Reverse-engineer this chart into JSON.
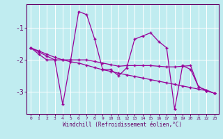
{
  "xlabel": "Windchill (Refroidissement éolien,°C)",
  "bg_color": "#c0ecf0",
  "line_color": "#990099",
  "grid_color": "#ffffff",
  "axis_color": "#660066",
  "x_hours": [
    0,
    1,
    2,
    3,
    4,
    5,
    6,
    7,
    8,
    9,
    10,
    11,
    12,
    13,
    14,
    15,
    16,
    17,
    18,
    19,
    20,
    21,
    22,
    23
  ],
  "series1": [
    -1.62,
    -1.82,
    -2.0,
    -2.0,
    -3.4,
    -2.0,
    -0.48,
    -0.58,
    -1.35,
    -2.3,
    -2.3,
    -2.5,
    -2.25,
    -1.35,
    -1.25,
    -1.15,
    -1.42,
    -1.62,
    -3.55,
    -2.18,
    -2.3,
    -2.85,
    -2.95,
    -3.05
  ],
  "series2": [
    -1.62,
    -1.72,
    -1.82,
    -1.92,
    -2.0,
    -2.06,
    -2.1,
    -2.17,
    -2.24,
    -2.31,
    -2.36,
    -2.42,
    -2.47,
    -2.52,
    -2.57,
    -2.62,
    -2.67,
    -2.72,
    -2.77,
    -2.82,
    -2.87,
    -2.92,
    -2.97,
    -3.05
  ],
  "series3": [
    -1.62,
    -1.75,
    -1.88,
    -2.0,
    -2.0,
    -2.0,
    -2.0,
    -2.0,
    -2.05,
    -2.1,
    -2.15,
    -2.2,
    -2.18,
    -2.18,
    -2.18,
    -2.18,
    -2.2,
    -2.22,
    -2.22,
    -2.2,
    -2.18,
    -2.85,
    -2.97,
    -3.05
  ],
  "ylim": [
    -3.7,
    -0.25
  ],
  "yticks": [
    -3,
    -2,
    -1
  ],
  "xlim": [
    -0.5,
    23.5
  ]
}
